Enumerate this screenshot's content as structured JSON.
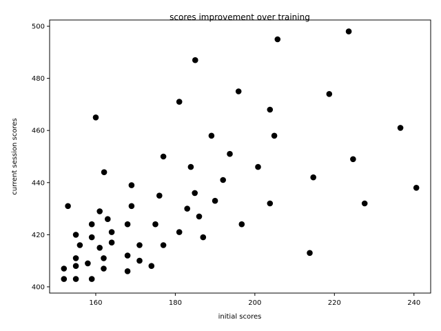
{
  "chart_data": {
    "type": "scatter",
    "title": "scores improvement over training",
    "xlabel": "initial scores",
    "ylabel": "current session scores",
    "xlim": [
      148.4,
      244.2
    ],
    "ylim": [
      397.6,
      502.4
    ],
    "xticks": [
      160,
      180,
      200,
      220,
      240
    ],
    "yticks": [
      400,
      420,
      440,
      460,
      480,
      500
    ],
    "grid": false,
    "marker_color": "#000000",
    "points": [
      [
        223.6,
        498
      ],
      [
        205.7,
        495
      ],
      [
        185.0,
        487
      ],
      [
        195.9,
        475
      ],
      [
        218.7,
        474
      ],
      [
        181.0,
        471
      ],
      [
        203.8,
        468
      ],
      [
        160.0,
        465
      ],
      [
        236.6,
        461
      ],
      [
        189.1,
        458
      ],
      [
        204.9,
        458
      ],
      [
        177.0,
        450
      ],
      [
        193.7,
        451
      ],
      [
        224.7,
        449
      ],
      [
        183.9,
        446
      ],
      [
        200.8,
        446
      ],
      [
        162.1,
        444
      ],
      [
        214.7,
        442
      ],
      [
        192.0,
        441
      ],
      [
        169.0,
        439
      ],
      [
        240.6,
        438
      ],
      [
        184.9,
        436
      ],
      [
        176.0,
        435
      ],
      [
        190.0,
        433
      ],
      [
        153.0,
        431
      ],
      [
        169.0,
        431
      ],
      [
        203.8,
        432
      ],
      [
        227.6,
        432
      ],
      [
        183.0,
        430
      ],
      [
        161.0,
        429
      ],
      [
        186.0,
        427
      ],
      [
        163.0,
        426
      ],
      [
        159.0,
        424
      ],
      [
        168.0,
        424
      ],
      [
        175.0,
        424
      ],
      [
        196.7,
        424
      ],
      [
        164.0,
        421
      ],
      [
        181.0,
        421
      ],
      [
        155.0,
        420
      ],
      [
        159.0,
        419
      ],
      [
        187.0,
        419
      ],
      [
        164.0,
        417
      ],
      [
        156.0,
        416
      ],
      [
        161.0,
        415
      ],
      [
        171.0,
        416
      ],
      [
        177.0,
        416
      ],
      [
        213.8,
        413
      ],
      [
        155.0,
        411
      ],
      [
        162.0,
        411
      ],
      [
        168.0,
        412
      ],
      [
        171.0,
        410
      ],
      [
        158.0,
        409
      ],
      [
        155.0,
        408
      ],
      [
        174.0,
        408
      ],
      [
        152.0,
        407
      ],
      [
        162.0,
        407
      ],
      [
        168.0,
        406
      ],
      [
        152.0,
        403
      ],
      [
        155.0,
        403
      ],
      [
        159.0,
        403
      ]
    ]
  }
}
